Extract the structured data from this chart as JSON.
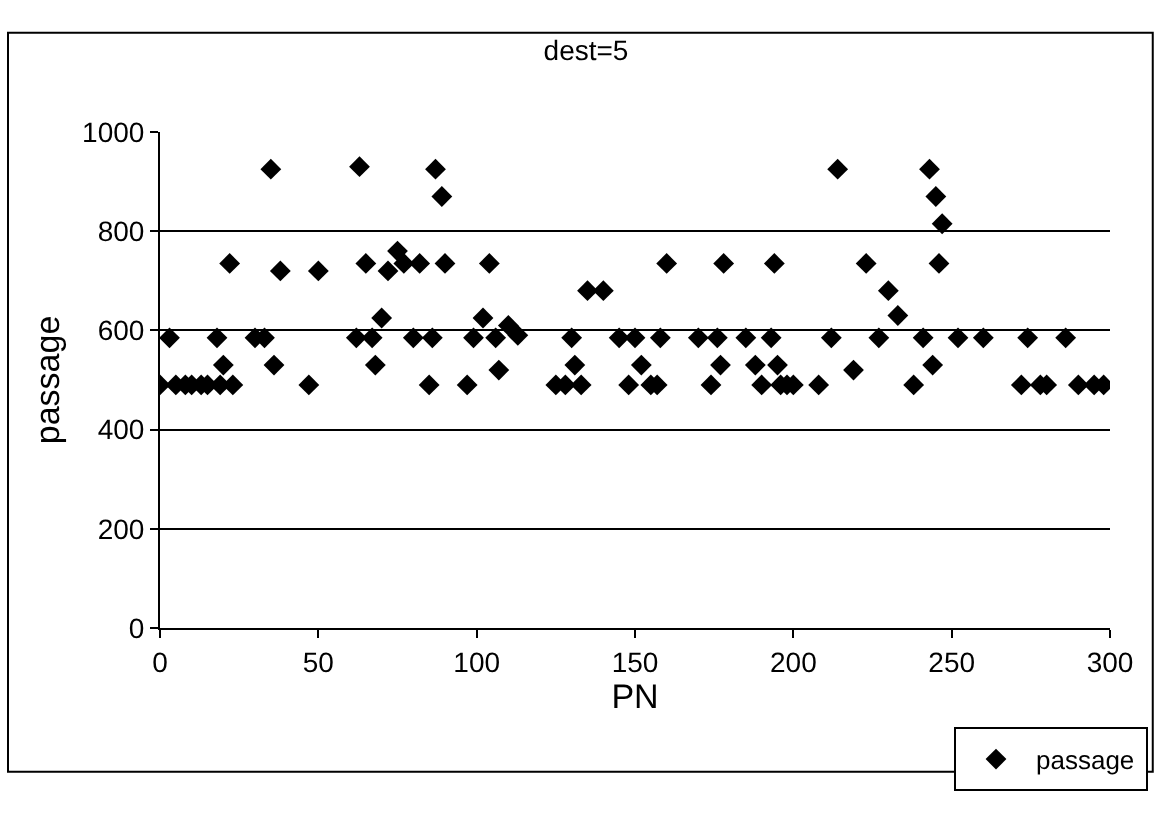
{
  "chart_data": {
    "type": "scatter",
    "title": "dest=5",
    "xlabel": "PN",
    "ylabel": "passage",
    "xlim": [
      0,
      300
    ],
    "xticks": [
      0,
      50,
      100,
      150,
      200,
      250,
      300
    ],
    "ylim": [
      0,
      1000
    ],
    "yticks": [
      0,
      200,
      400,
      600,
      800,
      1000
    ],
    "grid": "y",
    "legend": "bottom right",
    "marker": "diamond",
    "series": [
      {
        "name": "passage",
        "color": "#000000",
        "x": [
          0,
          3,
          5,
          8,
          10,
          13,
          15,
          18,
          19,
          20,
          22,
          23,
          30,
          33,
          35,
          36,
          38,
          47,
          50,
          62,
          63,
          65,
          67,
          68,
          70,
          72,
          75,
          77,
          80,
          82,
          85,
          86,
          87,
          89,
          90,
          97,
          99,
          102,
          104,
          106,
          107,
          110,
          113,
          125,
          128,
          130,
          131,
          133,
          135,
          140,
          145,
          148,
          150,
          152,
          155,
          157,
          158,
          160,
          170,
          174,
          176,
          177,
          178,
          185,
          188,
          190,
          193,
          194,
          195,
          196,
          198,
          200,
          208,
          212,
          214,
          219,
          223,
          227,
          230,
          233,
          238,
          241,
          243,
          244,
          245,
          246,
          247,
          252,
          260,
          272,
          274,
          278,
          280,
          286,
          290,
          295,
          298
        ],
        "values": [
          490,
          585,
          490,
          490,
          490,
          490,
          490,
          585,
          490,
          530,
          735,
          490,
          585,
          585,
          925,
          530,
          720,
          490,
          720,
          585,
          930,
          735,
          585,
          530,
          625,
          720,
          760,
          735,
          585,
          735,
          490,
          585,
          925,
          870,
          735,
          490,
          585,
          625,
          735,
          585,
          520,
          610,
          590,
          490,
          490,
          585,
          530,
          490,
          680,
          680,
          585,
          490,
          585,
          530,
          490,
          490,
          585,
          735,
          585,
          490,
          585,
          530,
          735,
          585,
          530,
          490,
          585,
          735,
          530,
          490,
          490,
          490,
          490,
          585,
          925,
          520,
          735,
          585,
          680,
          630,
          490,
          585,
          925,
          530,
          870,
          735,
          815,
          585,
          585,
          490,
          585,
          490,
          490,
          585,
          490,
          490,
          490
        ]
      }
    ]
  }
}
